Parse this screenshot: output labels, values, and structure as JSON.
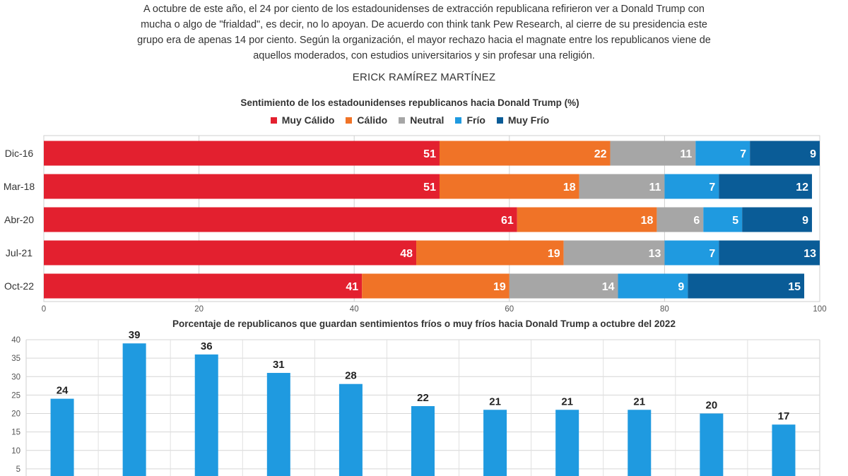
{
  "article": {
    "intro_lines": [
      "A octubre de este año, el 24 por ciento de los estadounidenses de extracción republicana refirieron ver a Donald Trump con",
      "mucha o algo de \"frialdad\", es decir, no lo apoyan. De acuerdo con think tank  Pew Research, al cierre de su presidencia este",
      "grupo era de apenas 14 por ciento. Según la organización, el mayor rechazo hacia el magnate entre los republicanos viene de",
      "aquellos moderados, con estudios universitarios y sin profesar una religión."
    ],
    "author": "ERICK RAMÍREZ MARTÍNEZ"
  },
  "chart_data": [
    {
      "type": "bar",
      "orientation": "horizontal",
      "stacked": true,
      "title": "Sentimiento de los estadounidenses republicanos hacia Donald Trump (%)",
      "categories": [
        "Dic-16",
        "Mar-18",
        "Abr-20",
        "Jul-21",
        "Oct-22"
      ],
      "series": [
        {
          "name": "Muy Cálido",
          "color": "#e3202f",
          "values": [
            51,
            51,
            61,
            48,
            41
          ]
        },
        {
          "name": "Cálido",
          "color": "#f07327",
          "values": [
            22,
            18,
            18,
            19,
            19
          ]
        },
        {
          "name": "Neutral",
          "color": "#a6a6a6",
          "values": [
            11,
            11,
            6,
            13,
            14
          ]
        },
        {
          "name": "Frío",
          "color": "#1f9ae0",
          "values": [
            7,
            7,
            5,
            7,
            9
          ]
        },
        {
          "name": "Muy Frío",
          "color": "#0a5c97",
          "values": [
            9,
            12,
            9,
            13,
            15
          ]
        }
      ],
      "xlim": [
        0,
        100
      ],
      "xticks": [
        0,
        20,
        40,
        60,
        80,
        100
      ],
      "grid": true,
      "legend": "top-center"
    },
    {
      "type": "bar",
      "title": "Porcentaje de republicanos que guardan sentimientos fríos o muy fríos hacia Donald Trump a octubre del 2022",
      "values": [
        24,
        39,
        36,
        31,
        28,
        22,
        21,
        21,
        21,
        20,
        17
      ],
      "color": "#1f9ae0",
      "ylim": [
        0,
        40
      ],
      "yticks": [
        5,
        10,
        15,
        20,
        25,
        30,
        35,
        40
      ],
      "grid": true
    }
  ]
}
